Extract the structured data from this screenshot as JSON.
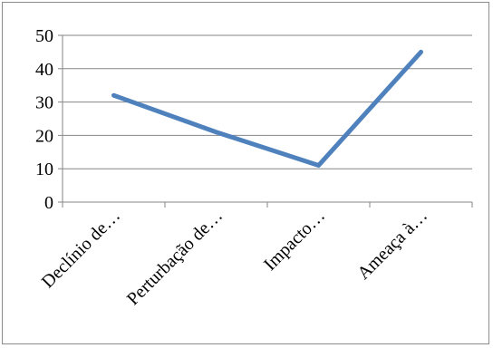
{
  "chart_data": {
    "type": "line",
    "categories": [
      "Declínio de…",
      "Perturbação de…",
      "Impacto…",
      "Ameaça à…"
    ],
    "series": [
      {
        "values": [
          32,
          21,
          11,
          45
        ]
      }
    ],
    "ylim": [
      0,
      50
    ],
    "yticks": [
      0,
      10,
      20,
      30,
      40,
      50
    ],
    "grid": true,
    "legend": "none",
    "colors": {
      "series": "#4f81bd",
      "grid": "#868686",
      "axis": "#868686"
    }
  }
}
